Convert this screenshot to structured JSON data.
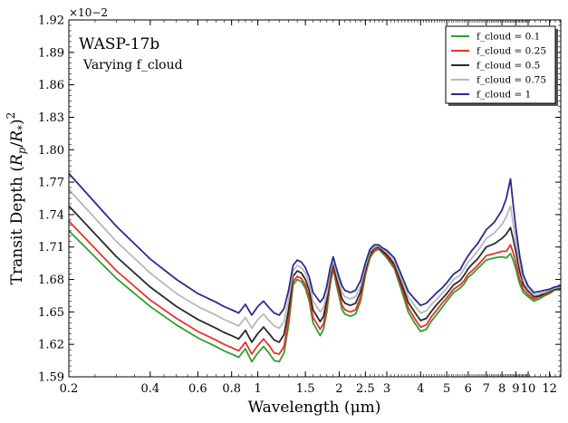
{
  "chart_data": {
    "type": "line",
    "title": "",
    "annotation_title": "WASP-17b",
    "annotation_subtitle": "Varying f_cloud",
    "xlabel": "Wavelength (μm)",
    "ylabel": "Transit Depth (R_p/R_*)^2",
    "y_exponent": "×10−2",
    "x_scale": "log",
    "xlim": [
      0.2,
      13.2
    ],
    "ylim": [
      1.59,
      1.92
    ],
    "grid": false,
    "legend_position": "top-right",
    "x_ticks": [
      "0.2",
      "0.4",
      "0.6",
      "0.8",
      "1",
      "1.5",
      "2",
      "2.5",
      "3",
      "4",
      "5",
      "6",
      "7",
      "8",
      "9",
      "10",
      "12"
    ],
    "y_ticks": [
      "1.59",
      "1.62",
      "1.65",
      "1.68",
      "1.71",
      "1.74",
      "1.77",
      "1.80",
      "1.83",
      "1.86",
      "1.89",
      "1.92"
    ],
    "x": [
      0.2,
      0.3,
      0.4,
      0.5,
      0.6,
      0.7,
      0.75,
      0.8,
      0.85,
      0.9,
      0.95,
      1.0,
      1.05,
      1.1,
      1.15,
      1.2,
      1.25,
      1.3,
      1.35,
      1.4,
      1.45,
      1.5,
      1.55,
      1.6,
      1.7,
      1.75,
      1.8,
      1.85,
      1.9,
      1.95,
      2.0,
      2.05,
      2.1,
      2.2,
      2.3,
      2.4,
      2.5,
      2.6,
      2.7,
      2.8,
      2.9,
      3.0,
      3.2,
      3.4,
      3.6,
      3.8,
      4.0,
      4.2,
      4.4,
      4.6,
      4.8,
      5.0,
      5.3,
      5.6,
      5.8,
      6.0,
      6.2,
      6.5,
      7.0,
      7.5,
      8.0,
      8.3,
      8.6,
      8.8,
      9.0,
      9.3,
      9.6,
      10.0,
      10.5,
      11.0,
      11.5,
      12.0,
      12.5,
      13.2
    ],
    "series": [
      {
        "name": "f_cloud = 0.1",
        "color": "#2ca02c",
        "values": [
          1.725,
          1.681,
          1.655,
          1.638,
          1.626,
          1.618,
          1.614,
          1.611,
          1.608,
          1.616,
          1.604,
          1.612,
          1.618,
          1.612,
          1.605,
          1.604,
          1.612,
          1.638,
          1.675,
          1.68,
          1.678,
          1.672,
          1.66,
          1.64,
          1.628,
          1.634,
          1.65,
          1.674,
          1.69,
          1.676,
          1.664,
          1.652,
          1.648,
          1.646,
          1.648,
          1.66,
          1.684,
          1.7,
          1.706,
          1.708,
          1.704,
          1.7,
          1.69,
          1.67,
          1.65,
          1.64,
          1.632,
          1.634,
          1.642,
          1.648,
          1.654,
          1.66,
          1.668,
          1.672,
          1.676,
          1.682,
          1.685,
          1.69,
          1.698,
          1.7,
          1.701,
          1.7,
          1.704,
          1.698,
          1.69,
          1.676,
          1.668,
          1.664,
          1.66,
          1.662,
          1.665,
          1.667,
          1.67,
          1.671
        ]
      },
      {
        "name": "f_cloud = 0.25",
        "color": "#e8302a",
        "values": [
          1.734,
          1.688,
          1.661,
          1.644,
          1.632,
          1.624,
          1.62,
          1.617,
          1.614,
          1.622,
          1.611,
          1.619,
          1.625,
          1.619,
          1.612,
          1.611,
          1.618,
          1.644,
          1.678,
          1.683,
          1.681,
          1.675,
          1.664,
          1.645,
          1.634,
          1.639,
          1.655,
          1.677,
          1.692,
          1.679,
          1.667,
          1.656,
          1.652,
          1.65,
          1.652,
          1.664,
          1.686,
          1.702,
          1.707,
          1.709,
          1.705,
          1.701,
          1.692,
          1.673,
          1.654,
          1.644,
          1.636,
          1.638,
          1.646,
          1.652,
          1.658,
          1.663,
          1.671,
          1.675,
          1.679,
          1.685,
          1.688,
          1.693,
          1.702,
          1.704,
          1.706,
          1.706,
          1.712,
          1.705,
          1.696,
          1.68,
          1.671,
          1.666,
          1.662,
          1.664,
          1.666,
          1.668,
          1.671,
          1.672
        ]
      },
      {
        "name": "f_cloud = 0.5",
        "color": "#2a2a2a",
        "values": [
          1.748,
          1.701,
          1.673,
          1.655,
          1.643,
          1.635,
          1.631,
          1.628,
          1.625,
          1.633,
          1.622,
          1.63,
          1.636,
          1.63,
          1.624,
          1.622,
          1.629,
          1.652,
          1.683,
          1.688,
          1.686,
          1.68,
          1.67,
          1.652,
          1.641,
          1.646,
          1.661,
          1.682,
          1.695,
          1.683,
          1.672,
          1.662,
          1.658,
          1.656,
          1.658,
          1.669,
          1.689,
          1.704,
          1.709,
          1.71,
          1.706,
          1.703,
          1.694,
          1.676,
          1.659,
          1.65,
          1.642,
          1.644,
          1.651,
          1.657,
          1.662,
          1.667,
          1.675,
          1.679,
          1.684,
          1.69,
          1.694,
          1.699,
          1.71,
          1.713,
          1.718,
          1.722,
          1.728,
          1.718,
          1.706,
          1.688,
          1.675,
          1.669,
          1.664,
          1.665,
          1.667,
          1.669,
          1.671,
          1.672
        ]
      },
      {
        "name": "f_cloud = 0.75",
        "color": "#b8b8b8",
        "values": [
          1.763,
          1.715,
          1.686,
          1.667,
          1.655,
          1.647,
          1.643,
          1.64,
          1.637,
          1.645,
          1.635,
          1.643,
          1.648,
          1.642,
          1.637,
          1.635,
          1.641,
          1.661,
          1.688,
          1.693,
          1.691,
          1.686,
          1.676,
          1.66,
          1.65,
          1.654,
          1.667,
          1.686,
          1.698,
          1.687,
          1.677,
          1.668,
          1.664,
          1.662,
          1.664,
          1.674,
          1.692,
          1.706,
          1.71,
          1.711,
          1.708,
          1.705,
          1.697,
          1.68,
          1.664,
          1.656,
          1.649,
          1.651,
          1.657,
          1.662,
          1.667,
          1.672,
          1.68,
          1.684,
          1.69,
          1.696,
          1.7,
          1.706,
          1.718,
          1.723,
          1.731,
          1.738,
          1.748,
          1.732,
          1.716,
          1.694,
          1.679,
          1.671,
          1.666,
          1.667,
          1.668,
          1.67,
          1.672,
          1.673
        ]
      },
      {
        "name": "f_cloud = 1",
        "color": "#2b2b8f",
        "values": [
          1.778,
          1.729,
          1.699,
          1.68,
          1.667,
          1.659,
          1.655,
          1.652,
          1.649,
          1.657,
          1.647,
          1.655,
          1.66,
          1.654,
          1.649,
          1.647,
          1.653,
          1.67,
          1.693,
          1.698,
          1.696,
          1.691,
          1.682,
          1.668,
          1.659,
          1.663,
          1.674,
          1.69,
          1.701,
          1.691,
          1.682,
          1.674,
          1.67,
          1.668,
          1.67,
          1.679,
          1.695,
          1.708,
          1.712,
          1.712,
          1.709,
          1.707,
          1.7,
          1.684,
          1.669,
          1.662,
          1.656,
          1.658,
          1.663,
          1.668,
          1.672,
          1.677,
          1.685,
          1.689,
          1.696,
          1.702,
          1.707,
          1.713,
          1.726,
          1.733,
          1.744,
          1.755,
          1.773,
          1.75,
          1.728,
          1.702,
          1.684,
          1.674,
          1.668,
          1.669,
          1.67,
          1.671,
          1.673,
          1.674
        ]
      }
    ]
  }
}
